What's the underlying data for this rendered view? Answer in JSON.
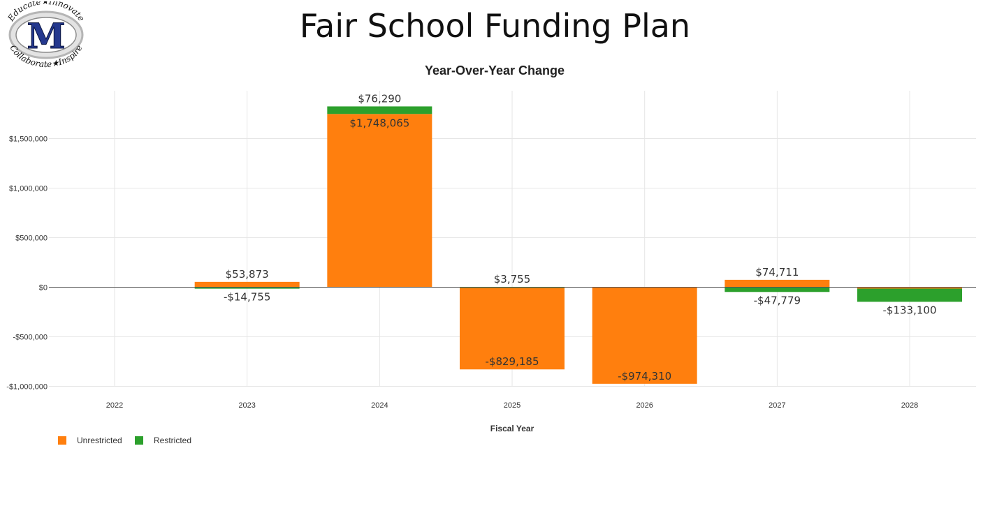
{
  "page": {
    "title": "Fair School Funding Plan",
    "logo": {
      "letter": "M",
      "top_text": "Educate★Innovate",
      "bottom_text": "Collaborate★Inspire"
    }
  },
  "chart_data": {
    "type": "bar",
    "stacked": true,
    "title": "Year-Over-Year Change",
    "xlabel": "Fiscal Year",
    "ylabel": "",
    "categories": [
      "2022",
      "2023",
      "2024",
      "2025",
      "2026",
      "2027",
      "2028"
    ],
    "series": [
      {
        "name": "Unrestricted",
        "color": "#ff7f0e",
        "values": [
          0,
          53873,
          1748065,
          -829185,
          -974310,
          74711,
          -14000
        ],
        "labels": [
          null,
          "$53,873",
          "$1,748,065",
          "-$829,185",
          "-$974,310",
          "$74,711",
          null
        ]
      },
      {
        "name": "Restricted",
        "color": "#2ca02c",
        "values": [
          0,
          -14755,
          76290,
          3755,
          0,
          -47779,
          -133100
        ],
        "labels": [
          null,
          "-$14,755",
          "$76,290",
          "$3,755",
          null,
          "-$47,779",
          "-$133,100"
        ]
      }
    ],
    "yticks": [
      {
        "value": 1500000,
        "label": "$1,500,000"
      },
      {
        "value": 1000000,
        "label": "$1,000,000"
      },
      {
        "value": 500000,
        "label": "$500,000"
      },
      {
        "value": 0,
        "label": "$0"
      },
      {
        "value": -500000,
        "label": "-$500,000"
      },
      {
        "value": -1000000,
        "label": "-$1,000,000"
      }
    ],
    "ylim": [
      -1100000,
      1970000
    ],
    "grid": true,
    "legend_position": "bottom-left"
  }
}
